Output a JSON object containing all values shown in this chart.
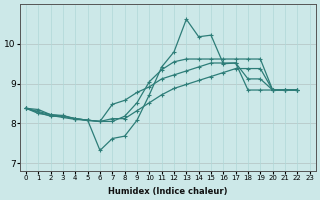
{
  "xlabel": "Humidex (Indice chaleur)",
  "ylabel": "",
  "bg_color": "#cce8e8",
  "grid_color": "#b0d8d8",
  "line_color": "#2d7d78",
  "xlim": [
    -0.5,
    23.5
  ],
  "ylim": [
    6.8,
    11.0
  ],
  "xticks": [
    0,
    1,
    2,
    3,
    4,
    5,
    6,
    7,
    8,
    9,
    10,
    11,
    12,
    13,
    14,
    15,
    16,
    17,
    18,
    19,
    20,
    21,
    22,
    23
  ],
  "yticks": [
    7,
    8,
    9,
    10
  ],
  "series": [
    {
      "x": [
        0,
        1,
        2,
        3,
        4,
        5,
        6,
        7,
        8,
        9,
        10,
        11,
        12,
        13,
        14,
        15,
        16,
        17,
        18,
        19,
        20,
        21,
        22
      ],
      "y": [
        8.38,
        8.25,
        8.2,
        8.15,
        8.1,
        8.08,
        7.32,
        7.62,
        7.68,
        8.08,
        8.72,
        9.42,
        9.8,
        10.62,
        10.18,
        10.22,
        9.5,
        9.52,
        9.12,
        9.12,
        8.84,
        8.84,
        8.84
      ]
    },
    {
      "x": [
        0,
        1,
        2,
        3,
        4,
        5,
        6,
        7,
        8,
        9,
        10,
        11,
        12,
        13,
        14,
        15,
        16,
        17,
        18,
        19,
        20,
        21,
        22
      ],
      "y": [
        8.38,
        8.35,
        8.22,
        8.2,
        8.12,
        8.08,
        8.05,
        8.05,
        8.18,
        8.52,
        9.05,
        9.35,
        9.55,
        9.62,
        9.62,
        9.62,
        9.62,
        9.62,
        9.62,
        9.62,
        8.84,
        8.84,
        8.84
      ]
    },
    {
      "x": [
        0,
        2,
        3,
        4,
        5,
        6,
        7,
        8,
        9,
        10,
        11,
        12,
        13,
        14,
        15,
        16,
        17,
        18,
        19,
        20,
        21,
        22
      ],
      "y": [
        8.38,
        8.18,
        8.18,
        8.12,
        8.08,
        8.05,
        8.48,
        8.58,
        8.78,
        8.92,
        9.12,
        9.22,
        9.32,
        9.42,
        9.52,
        9.52,
        9.52,
        8.84,
        8.84,
        8.84,
        8.84,
        8.84
      ]
    },
    {
      "x": [
        0,
        2,
        3,
        4,
        5,
        6,
        7,
        8,
        9,
        10,
        11,
        12,
        13,
        14,
        15,
        16,
        17,
        18,
        19,
        20,
        21,
        22
      ],
      "y": [
        8.38,
        8.22,
        8.18,
        8.12,
        8.08,
        8.05,
        8.12,
        8.12,
        8.32,
        8.52,
        8.72,
        8.88,
        8.98,
        9.08,
        9.18,
        9.28,
        9.38,
        9.38,
        9.38,
        8.84,
        8.84,
        8.84
      ]
    }
  ]
}
